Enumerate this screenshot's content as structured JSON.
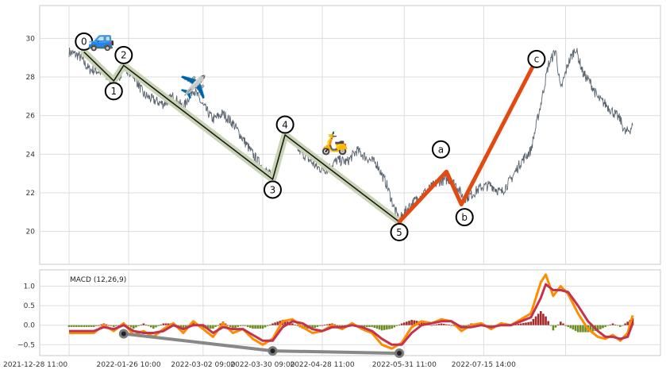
{
  "chart_data": [
    {
      "type": "line",
      "panel": "price",
      "title": "",
      "xlabel": "",
      "ylabel": "",
      "ylim": [
        18.3,
        31.7
      ],
      "yticks": [
        20,
        22,
        24,
        26,
        28,
        30
      ],
      "grid": true,
      "colors": {
        "price": "#5a6570",
        "impulse": "#1a1a1a",
        "impulse_halo": "#c8d4b4",
        "correction": "#e34a12"
      },
      "price_series": [
        {
          "x": 0,
          "y": 29.3
        },
        {
          "x": 4,
          "y": 29.1
        },
        {
          "x": 8,
          "y": 28.4
        },
        {
          "x": 12,
          "y": 28.3
        },
        {
          "x": 16,
          "y": 27.9
        },
        {
          "x": 19,
          "y": 27.7
        },
        {
          "x": 22,
          "y": 28.5
        },
        {
          "x": 26,
          "y": 28.1
        },
        {
          "x": 30,
          "y": 27.1
        },
        {
          "x": 34,
          "y": 26.8
        },
        {
          "x": 38,
          "y": 26.6
        },
        {
          "x": 42,
          "y": 27.0
        },
        {
          "x": 46,
          "y": 26.4
        },
        {
          "x": 50,
          "y": 27.4
        },
        {
          "x": 54,
          "y": 26.5
        },
        {
          "x": 58,
          "y": 25.8
        },
        {
          "x": 62,
          "y": 26.1
        },
        {
          "x": 66,
          "y": 25.6
        },
        {
          "x": 70,
          "y": 24.8
        },
        {
          "x": 74,
          "y": 24.0
        },
        {
          "x": 78,
          "y": 23.3
        },
        {
          "x": 82,
          "y": 22.8
        },
        {
          "x": 84,
          "y": 23.7
        },
        {
          "x": 86,
          "y": 24.8
        },
        {
          "x": 88,
          "y": 25.0
        },
        {
          "x": 92,
          "y": 24.3
        },
        {
          "x": 96,
          "y": 23.8
        },
        {
          "x": 100,
          "y": 23.3
        },
        {
          "x": 104,
          "y": 23.2
        },
        {
          "x": 108,
          "y": 23.7
        },
        {
          "x": 112,
          "y": 23.6
        },
        {
          "x": 116,
          "y": 24.2
        },
        {
          "x": 120,
          "y": 23.8
        },
        {
          "x": 124,
          "y": 23.5
        },
        {
          "x": 128,
          "y": 22.4
        },
        {
          "x": 131,
          "y": 21.2
        },
        {
          "x": 133,
          "y": 20.6
        },
        {
          "x": 137,
          "y": 21.3
        },
        {
          "x": 141,
          "y": 21.8
        },
        {
          "x": 145,
          "y": 22.2
        },
        {
          "x": 149,
          "y": 22.6
        },
        {
          "x": 153,
          "y": 22.7
        },
        {
          "x": 156,
          "y": 22.4
        },
        {
          "x": 159,
          "y": 21.7
        },
        {
          "x": 162,
          "y": 21.9
        },
        {
          "x": 166,
          "y": 22.3
        },
        {
          "x": 170,
          "y": 22.4
        },
        {
          "x": 174,
          "y": 22.0
        },
        {
          "x": 178,
          "y": 22.7
        },
        {
          "x": 182,
          "y": 23.6
        },
        {
          "x": 186,
          "y": 24.2
        },
        {
          "x": 190,
          "y": 26.6
        },
        {
          "x": 193,
          "y": 28.6
        },
        {
          "x": 196,
          "y": 29.4
        },
        {
          "x": 198,
          "y": 27.3
        },
        {
          "x": 201,
          "y": 28.7
        },
        {
          "x": 204,
          "y": 29.5
        },
        {
          "x": 207,
          "y": 28.2
        },
        {
          "x": 210,
          "y": 27.7
        },
        {
          "x": 213,
          "y": 26.9
        },
        {
          "x": 216,
          "y": 26.6
        },
        {
          "x": 219,
          "y": 26.2
        },
        {
          "x": 222,
          "y": 25.8
        },
        {
          "x": 224,
          "y": 25.1
        },
        {
          "x": 226,
          "y": 25.3
        },
        {
          "x": 227,
          "y": 25.5
        }
      ],
      "wave_markers": [
        {
          "label": "0",
          "x": 6,
          "y": 29.3,
          "role": "impulse"
        },
        {
          "label": "1",
          "x": 18,
          "y": 27.8,
          "role": "impulse"
        },
        {
          "label": "2",
          "x": 22,
          "y": 28.6,
          "role": "impulse"
        },
        {
          "label": "3",
          "x": 82,
          "y": 22.7,
          "role": "impulse"
        },
        {
          "label": "4",
          "x": 87,
          "y": 25.0,
          "role": "impulse"
        },
        {
          "label": "5",
          "x": 133,
          "y": 20.5,
          "role": "impulse"
        },
        {
          "label": "a",
          "x": 152,
          "y": 23.1,
          "role": "correction"
        },
        {
          "label": "b",
          "x": 158,
          "y": 21.4,
          "role": "correction"
        },
        {
          "label": "c",
          "x": 187,
          "y": 28.6,
          "role": "correction"
        }
      ],
      "emoji_annotations": [
        {
          "icon": "car",
          "glyph": "🚙",
          "x": 13,
          "y": 30.0
        },
        {
          "icon": "airplane",
          "glyph": "✈️",
          "x": 50,
          "y": 27.5
        },
        {
          "icon": "scooter",
          "glyph": "🛵",
          "x": 107,
          "y": 24.6
        }
      ]
    },
    {
      "type": "line",
      "panel": "macd",
      "title": "MACD (12,26,9)",
      "ylim": [
        -0.78,
        1.42
      ],
      "yticks": [
        1.0,
        0.5,
        0.0,
        -0.5
      ],
      "ytick_labels": [
        "1.0",
        "0.5",
        "0.0",
        "−0.5"
      ],
      "xticks": [
        0,
        24,
        54,
        78,
        102,
        135,
        167
      ],
      "xtick_labels": [
        "2021-12-28 11:00",
        "2022-01-26 10:00",
        "2022-03-02 09:00",
        "2022-03-30 09:00",
        "2022-04-28 11:00",
        "2022-05-31 11:00",
        "2022-07-15 14:00"
      ],
      "grid": true,
      "colors": {
        "macd": "#ff8c00",
        "signal": "#c4334e",
        "hist_pos": "#a52a2a",
        "hist_neg": "#6b8e23",
        "divergence": "#888888"
      },
      "macd_series": [
        {
          "x": 0,
          "y": -0.2
        },
        {
          "x": 5,
          "y": -0.2
        },
        {
          "x": 10,
          "y": -0.2
        },
        {
          "x": 14,
          "y": 0.0
        },
        {
          "x": 18,
          "y": -0.15
        },
        {
          "x": 22,
          "y": 0.05
        },
        {
          "x": 26,
          "y": -0.25
        },
        {
          "x": 30,
          "y": -0.15
        },
        {
          "x": 34,
          "y": -0.3
        },
        {
          "x": 38,
          "y": -0.1
        },
        {
          "x": 42,
          "y": 0.05
        },
        {
          "x": 46,
          "y": -0.2
        },
        {
          "x": 50,
          "y": 0.1
        },
        {
          "x": 54,
          "y": -0.1
        },
        {
          "x": 58,
          "y": -0.3
        },
        {
          "x": 62,
          "y": 0.05
        },
        {
          "x": 66,
          "y": -0.2
        },
        {
          "x": 70,
          "y": -0.1
        },
        {
          "x": 74,
          "y": -0.35
        },
        {
          "x": 78,
          "y": -0.5
        },
        {
          "x": 82,
          "y": -0.35
        },
        {
          "x": 86,
          "y": 0.1
        },
        {
          "x": 90,
          "y": 0.15
        },
        {
          "x": 94,
          "y": -0.05
        },
        {
          "x": 98,
          "y": -0.2
        },
        {
          "x": 102,
          "y": -0.15
        },
        {
          "x": 106,
          "y": 0.0
        },
        {
          "x": 110,
          "y": -0.1
        },
        {
          "x": 114,
          "y": 0.05
        },
        {
          "x": 118,
          "y": -0.1
        },
        {
          "x": 122,
          "y": -0.2
        },
        {
          "x": 126,
          "y": -0.5
        },
        {
          "x": 130,
          "y": -0.6
        },
        {
          "x": 134,
          "y": -0.45
        },
        {
          "x": 138,
          "y": -0.05
        },
        {
          "x": 142,
          "y": 0.1
        },
        {
          "x": 146,
          "y": 0.05
        },
        {
          "x": 150,
          "y": 0.15
        },
        {
          "x": 154,
          "y": 0.1
        },
        {
          "x": 158,
          "y": -0.15
        },
        {
          "x": 162,
          "y": 0.0
        },
        {
          "x": 166,
          "y": 0.05
        },
        {
          "x": 170,
          "y": -0.1
        },
        {
          "x": 174,
          "y": 0.05
        },
        {
          "x": 178,
          "y": 0.0
        },
        {
          "x": 182,
          "y": 0.15
        },
        {
          "x": 186,
          "y": 0.3
        },
        {
          "x": 190,
          "y": 1.1
        },
        {
          "x": 192,
          "y": 1.3
        },
        {
          "x": 195,
          "y": 0.75
        },
        {
          "x": 198,
          "y": 1.0
        },
        {
          "x": 201,
          "y": 0.8
        },
        {
          "x": 205,
          "y": 0.3
        },
        {
          "x": 209,
          "y": -0.1
        },
        {
          "x": 213,
          "y": -0.3
        },
        {
          "x": 216,
          "y": -0.35
        },
        {
          "x": 219,
          "y": -0.25
        },
        {
          "x": 222,
          "y": -0.4
        },
        {
          "x": 225,
          "y": -0.2
        },
        {
          "x": 227,
          "y": 0.25
        }
      ],
      "signal_series": [
        {
          "x": 0,
          "y": -0.15
        },
        {
          "x": 5,
          "y": -0.15
        },
        {
          "x": 10,
          "y": -0.15
        },
        {
          "x": 14,
          "y": -0.05
        },
        {
          "x": 18,
          "y": -0.1
        },
        {
          "x": 22,
          "y": 0.0
        },
        {
          "x": 26,
          "y": -0.15
        },
        {
          "x": 30,
          "y": -0.2
        },
        {
          "x": 34,
          "y": -0.2
        },
        {
          "x": 38,
          "y": -0.15
        },
        {
          "x": 42,
          "y": 0.0
        },
        {
          "x": 46,
          "y": -0.1
        },
        {
          "x": 50,
          "y": 0.0
        },
        {
          "x": 54,
          "y": 0.0
        },
        {
          "x": 58,
          "y": -0.2
        },
        {
          "x": 62,
          "y": -0.05
        },
        {
          "x": 66,
          "y": -0.1
        },
        {
          "x": 70,
          "y": -0.1
        },
        {
          "x": 74,
          "y": -0.25
        },
        {
          "x": 78,
          "y": -0.4
        },
        {
          "x": 82,
          "y": -0.4
        },
        {
          "x": 86,
          "y": -0.05
        },
        {
          "x": 90,
          "y": 0.1
        },
        {
          "x": 94,
          "y": 0.05
        },
        {
          "x": 98,
          "y": -0.1
        },
        {
          "x": 102,
          "y": -0.15
        },
        {
          "x": 106,
          "y": -0.05
        },
        {
          "x": 110,
          "y": -0.05
        },
        {
          "x": 114,
          "y": 0.0
        },
        {
          "x": 118,
          "y": -0.05
        },
        {
          "x": 122,
          "y": -0.15
        },
        {
          "x": 126,
          "y": -0.35
        },
        {
          "x": 130,
          "y": -0.5
        },
        {
          "x": 134,
          "y": -0.5
        },
        {
          "x": 138,
          "y": -0.2
        },
        {
          "x": 142,
          "y": 0.0
        },
        {
          "x": 146,
          "y": 0.05
        },
        {
          "x": 150,
          "y": 0.1
        },
        {
          "x": 154,
          "y": 0.1
        },
        {
          "x": 158,
          "y": -0.05
        },
        {
          "x": 162,
          "y": -0.05
        },
        {
          "x": 166,
          "y": 0.0
        },
        {
          "x": 170,
          "y": -0.05
        },
        {
          "x": 174,
          "y": 0.0
        },
        {
          "x": 178,
          "y": 0.0
        },
        {
          "x": 182,
          "y": 0.1
        },
        {
          "x": 186,
          "y": 0.2
        },
        {
          "x": 190,
          "y": 0.7
        },
        {
          "x": 192,
          "y": 1.05
        },
        {
          "x": 195,
          "y": 0.9
        },
        {
          "x": 198,
          "y": 0.9
        },
        {
          "x": 201,
          "y": 0.85
        },
        {
          "x": 205,
          "y": 0.5
        },
        {
          "x": 209,
          "y": 0.1
        },
        {
          "x": 213,
          "y": -0.15
        },
        {
          "x": 216,
          "y": -0.3
        },
        {
          "x": 219,
          "y": -0.3
        },
        {
          "x": 222,
          "y": -0.35
        },
        {
          "x": 225,
          "y": -0.3
        },
        {
          "x": 227,
          "y": 0.05
        }
      ],
      "divergence_line": [
        {
          "x": 22,
          "y": -0.22
        },
        {
          "x": 82,
          "y": -0.66
        },
        {
          "x": 133,
          "y": -0.72
        }
      ]
    }
  ]
}
